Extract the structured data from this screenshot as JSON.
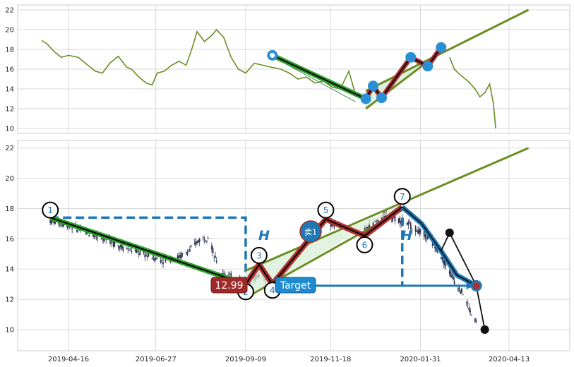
{
  "chart_data": [
    {
      "type": "line",
      "panel": "overview",
      "title": "",
      "xlabel": "",
      "ylabel": "",
      "ylim": [
        9.5,
        22.5
      ],
      "yticks": [
        10,
        12,
        14,
        16,
        18,
        20,
        22
      ],
      "grid": true,
      "series": [
        {
          "color": "#6b8e23",
          "points": [
            [
              "2019-03-25",
              18.9
            ],
            [
              "2019-03-29",
              18.6
            ],
            [
              "2019-04-04",
              17.8
            ],
            [
              "2019-04-10",
              17.2
            ],
            [
              "2019-04-16",
              17.4
            ],
            [
              "2019-04-24",
              17.2
            ],
            [
              "2019-05-02",
              16.4
            ],
            [
              "2019-05-08",
              15.8
            ],
            [
              "2019-05-14",
              15.6
            ],
            [
              "2019-05-20",
              16.6
            ],
            [
              "2019-05-27",
              17.3
            ],
            [
              "2019-06-03",
              16.2
            ],
            [
              "2019-06-07",
              16.0
            ],
            [
              "2019-06-13",
              15.2
            ],
            [
              "2019-06-19",
              14.6
            ],
            [
              "2019-06-24",
              14.4
            ],
            [
              "2019-06-28",
              15.6
            ],
            [
              "2019-07-04",
              15.8
            ],
            [
              "2019-07-10",
              16.4
            ],
            [
              "2019-07-16",
              16.8
            ],
            [
              "2019-07-22",
              16.4
            ],
            [
              "2019-07-26",
              17.8
            ],
            [
              "2019-07-31",
              19.8
            ],
            [
              "2019-08-06",
              18.8
            ],
            [
              "2019-08-12",
              19.4
            ],
            [
              "2019-08-16",
              20.0
            ],
            [
              "2019-08-22",
              19.2
            ],
            [
              "2019-08-28",
              17.2
            ],
            [
              "2019-09-03",
              16.0
            ],
            [
              "2019-09-09",
              15.6
            ],
            [
              "2019-09-16",
              16.6
            ],
            [
              "2019-09-23",
              16.4
            ],
            [
              "2019-09-30",
              16.2
            ],
            [
              "2019-10-08",
              16.0
            ],
            [
              "2019-10-15",
              15.6
            ],
            [
              "2019-10-22",
              15.0
            ],
            [
              "2019-10-29",
              15.2
            ],
            [
              "2019-11-05",
              14.6
            ],
            [
              "2019-11-12",
              14.8
            ],
            [
              "2019-11-19",
              14.2
            ],
            [
              "2019-11-26",
              14.0
            ],
            [
              "2019-12-03",
              15.8
            ],
            [
              "2019-12-09",
              13.2
            ]
          ]
        },
        {
          "color": "#6b8e23",
          "points": [
            [
              "2020-02-24",
              17.2
            ],
            [
              "2020-02-28",
              16.0
            ],
            [
              "2020-03-04",
              15.4
            ],
            [
              "2020-03-10",
              14.8
            ],
            [
              "2020-03-16",
              14.0
            ],
            [
              "2020-03-20",
              13.2
            ],
            [
              "2020-03-24",
              13.6
            ],
            [
              "2020-03-28",
              14.5
            ],
            [
              "2020-03-31",
              12.6
            ],
            [
              "2020-04-02",
              10.0
            ]
          ]
        }
      ],
      "zigzag_points": [
        {
          "x": "2019-10-01",
          "y": 17.4,
          "filled": false
        },
        {
          "x": "2019-12-17",
          "y": 13.0,
          "filled": true
        },
        {
          "x": "2019-12-23",
          "y": 14.3,
          "filled": true
        },
        {
          "x": "2019-12-30",
          "y": 13.1,
          "filled": true
        },
        {
          "x": "2020-01-23",
          "y": 17.2,
          "filled": true
        },
        {
          "x": "2020-02-06",
          "y": 16.3,
          "filled": true
        },
        {
          "x": "2020-02-17",
          "y": 18.2,
          "filled": true
        }
      ],
      "channel": {
        "upper": [
          [
            "2019-12-17",
            13.8
          ],
          [
            "2020-04-29",
            22.0
          ]
        ],
        "lower": [
          [
            "2019-12-17",
            12.0
          ],
          [
            "2020-02-17",
            17.8
          ]
        ]
      }
    },
    {
      "type": "candlestick",
      "panel": "main",
      "title": "",
      "xlabel": "",
      "ylabel": "",
      "ylim": [
        8.6,
        22.5
      ],
      "yticks": [
        10,
        12,
        14,
        16,
        18,
        20,
        22
      ],
      "xticks": [
        "2019-04-16",
        "2019-06-27",
        "2019-09-09",
        "2019-11-18",
        "2020-01-31",
        "2020-04-13"
      ],
      "grid": true,
      "price_path_1": [
        [
          "2019-04-01",
          17.2
        ],
        [
          "2019-04-16",
          16.9
        ],
        [
          "2019-05-01",
          16.4
        ],
        [
          "2019-05-16",
          16.0
        ],
        [
          "2019-06-01",
          15.4
        ],
        [
          "2019-06-16",
          15.0
        ],
        [
          "2019-07-01",
          14.6
        ],
        [
          "2019-07-16",
          14.8
        ],
        [
          "2019-07-25",
          15.2
        ],
        [
          "2019-08-01",
          15.9
        ],
        [
          "2019-08-10",
          16.2
        ],
        [
          "2019-08-14",
          14.8
        ],
        [
          "2019-08-21",
          13.8
        ],
        [
          "2019-09-01",
          13.3
        ],
        [
          "2019-09-09",
          13.1
        ],
        [
          "2019-09-20",
          13.6
        ],
        [
          "2019-10-01",
          13.2
        ],
        [
          "2019-10-16",
          15.0
        ],
        [
          "2019-11-01",
          16.2
        ],
        [
          "2019-11-14",
          17.0
        ],
        [
          "2019-12-01",
          16.8
        ],
        [
          "2019-12-16",
          16.6
        ],
        [
          "2020-01-02",
          17.6
        ],
        [
          "2020-01-16",
          17.2
        ],
        [
          "2020-01-31",
          16.4
        ],
        [
          "2020-02-07",
          16.0
        ],
        [
          "2020-02-14",
          15.3
        ],
        [
          "2020-02-21",
          14.3
        ],
        [
          "2020-02-28",
          13.2
        ],
        [
          "2020-03-06",
          12.4
        ],
        [
          "2020-03-13",
          11.0
        ],
        [
          "2020-03-17",
          10.5
        ]
      ],
      "waves": [
        {
          "label": "1",
          "x": "2019-04-01",
          "y": 17.9
        },
        {
          "label": "2",
          "x": "2019-09-09",
          "y": 12.5
        },
        {
          "label": "3",
          "x": "2019-09-20",
          "y": 14.9
        },
        {
          "label": "4",
          "x": "2019-10-01",
          "y": 12.6
        },
        {
          "label": "5",
          "x": "2019-11-14",
          "y": 17.9
        },
        {
          "label": "6",
          "x": "2019-12-16",
          "y": 15.6
        },
        {
          "label": "7",
          "x": "2020-01-16",
          "y": 18.8
        }
      ],
      "trend_lines": [
        {
          "name": "green-down",
          "points": [
            [
              "2019-04-01",
              17.4
            ],
            [
              "2019-09-09",
              13.0
            ]
          ],
          "color": "#2ca02c"
        },
        {
          "name": "channel-upper",
          "points": [
            [
              "2019-09-09",
              13.9
            ],
            [
              "2020-04-29",
              22.0
            ]
          ],
          "color": "#6b8e23"
        },
        {
          "name": "channel-lower",
          "points": [
            [
              "2019-09-09",
              12.1
            ],
            [
              "2020-01-16",
              17.9
            ]
          ],
          "color": "#6b8e23"
        },
        {
          "name": "red-zigzag",
          "points": [
            [
              "2019-09-09",
              13.0
            ],
            [
              "2019-09-20",
              14.3
            ],
            [
              "2019-10-01",
              13.0
            ],
            [
              "2019-11-14",
              17.3
            ],
            [
              "2019-12-16",
              16.2
            ],
            [
              "2020-01-16",
              18.1
            ]
          ],
          "color": "#b03030"
        },
        {
          "name": "blue-projection",
          "points": [
            [
              "2020-01-16",
              18.1
            ],
            [
              "2020-02-01",
              17.0
            ],
            [
              "2020-02-17",
              15.2
            ],
            [
              "2020-03-01",
              13.6
            ],
            [
              "2020-03-17",
              12.9
            ]
          ],
          "color": "#1f77b4"
        },
        {
          "name": "black-path",
          "points": [
            [
              "2020-02-17",
              15.2
            ],
            [
              "2020-02-24",
              16.4
            ],
            [
              "2020-03-17",
              12.9
            ],
            [
              "2020-03-24",
              10.0
            ]
          ],
          "color": "#111111"
        }
      ],
      "markers": [
        {
          "x": "2020-02-24",
          "y": 16.4,
          "color": "#111111"
        },
        {
          "x": "2020-03-24",
          "y": 10.0,
          "color": "#111111"
        },
        {
          "x": "2020-03-17",
          "y": 12.9,
          "color": "#1f77b4"
        }
      ],
      "target_box": {
        "x1": "2019-04-01",
        "x2": "2019-09-09",
        "top": 17.4,
        "bottom": 13.0
      },
      "target_line": {
        "x1": "2019-10-22",
        "x2": "2020-03-17",
        "y": 12.9,
        "drop_from": 17.4,
        "drop_x": "2020-01-16"
      },
      "annotations": {
        "price_label": "12.99",
        "target_label": "Target",
        "sell_label": "卖1",
        "height_label_left": "H",
        "height_label_right": "H"
      }
    }
  ]
}
